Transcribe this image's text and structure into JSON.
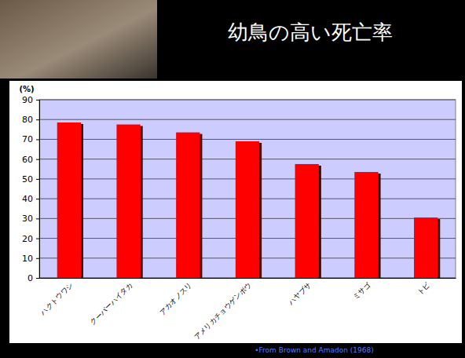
{
  "chart_data": {
    "type": "bar",
    "title": "幼鳥の高い死亡率",
    "y_label": "(%)",
    "categories": [
      "ハクトウワシ",
      "クーパーハイタカ",
      "アカオノスリ",
      "アメリカチョウゲンボウ",
      "ハヤブサ",
      "ミサゴ",
      "トビ"
    ],
    "values": [
      78.5,
      77.5,
      73.5,
      69,
      57.5,
      53.5,
      30.5
    ],
    "color": "#ff0000",
    "ylim": [
      0,
      90
    ],
    "yticks": [
      0,
      10,
      20,
      30,
      40,
      50,
      60,
      70,
      80,
      90
    ],
    "grid": true,
    "annotations": [
      "•From Brown and Amadon (1968)"
    ]
  }
}
